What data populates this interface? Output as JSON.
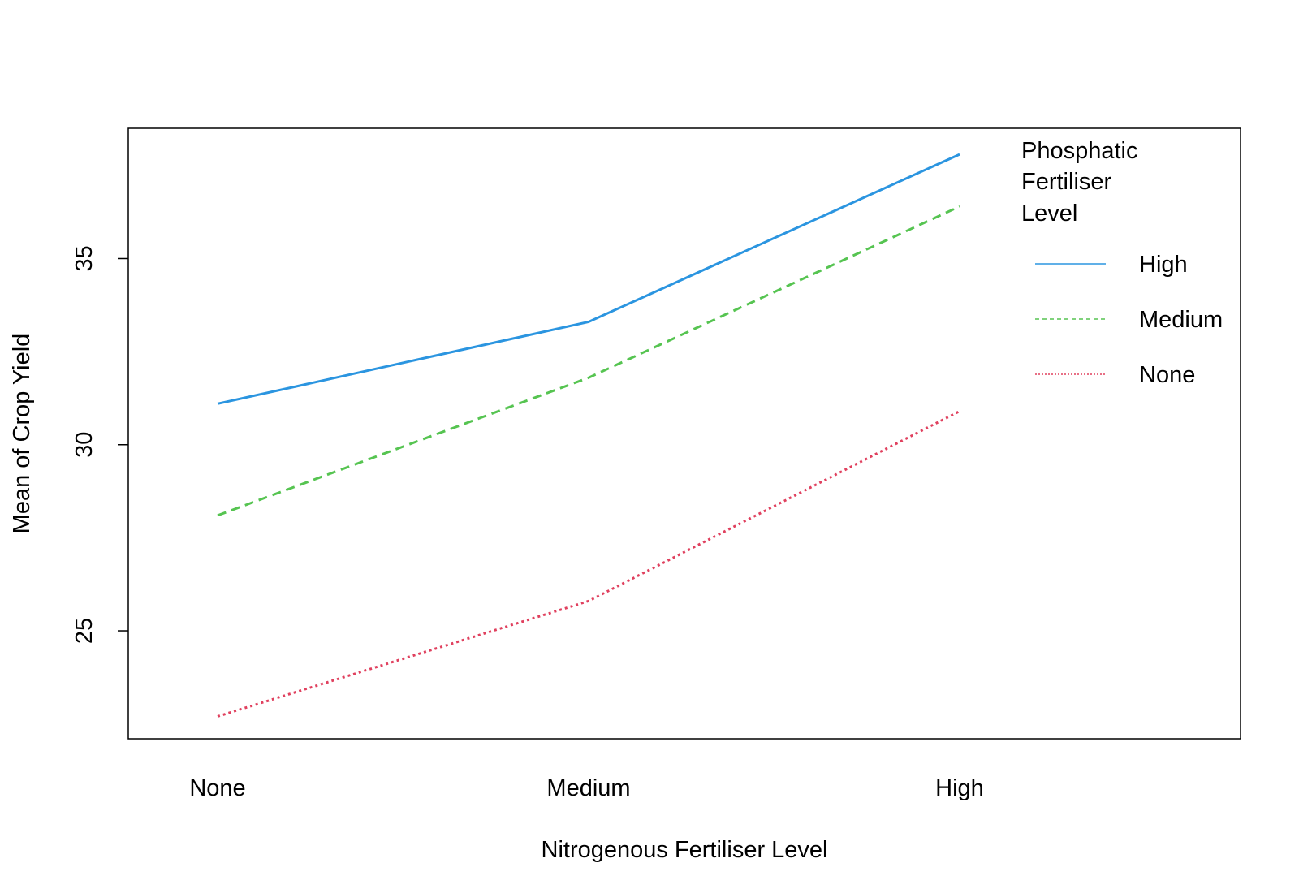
{
  "chart_data": {
    "type": "line",
    "xlabel": "Nitrogenous Fertiliser Level",
    "ylabel": "Mean of Crop Yield",
    "categories": [
      "None",
      "Medium",
      "High"
    ],
    "ylim": [
      22.1,
      38.5
    ],
    "yticks": [
      25,
      30,
      35
    ],
    "grid": false,
    "legend": {
      "title_lines": [
        "Phosphatic",
        "Fertiliser",
        "Level"
      ],
      "placement": "top-right"
    },
    "series": [
      {
        "name": "High",
        "values": [
          31.1,
          33.3,
          37.8
        ],
        "color": "#2b95e0",
        "style": "solid"
      },
      {
        "name": "Medium",
        "values": [
          28.1,
          31.8,
          36.4
        ],
        "color": "#56c451",
        "style": "dashed"
      },
      {
        "name": "None",
        "values": [
          22.7,
          25.8,
          30.9
        ],
        "color": "#e0405e",
        "style": "dotted"
      }
    ]
  }
}
